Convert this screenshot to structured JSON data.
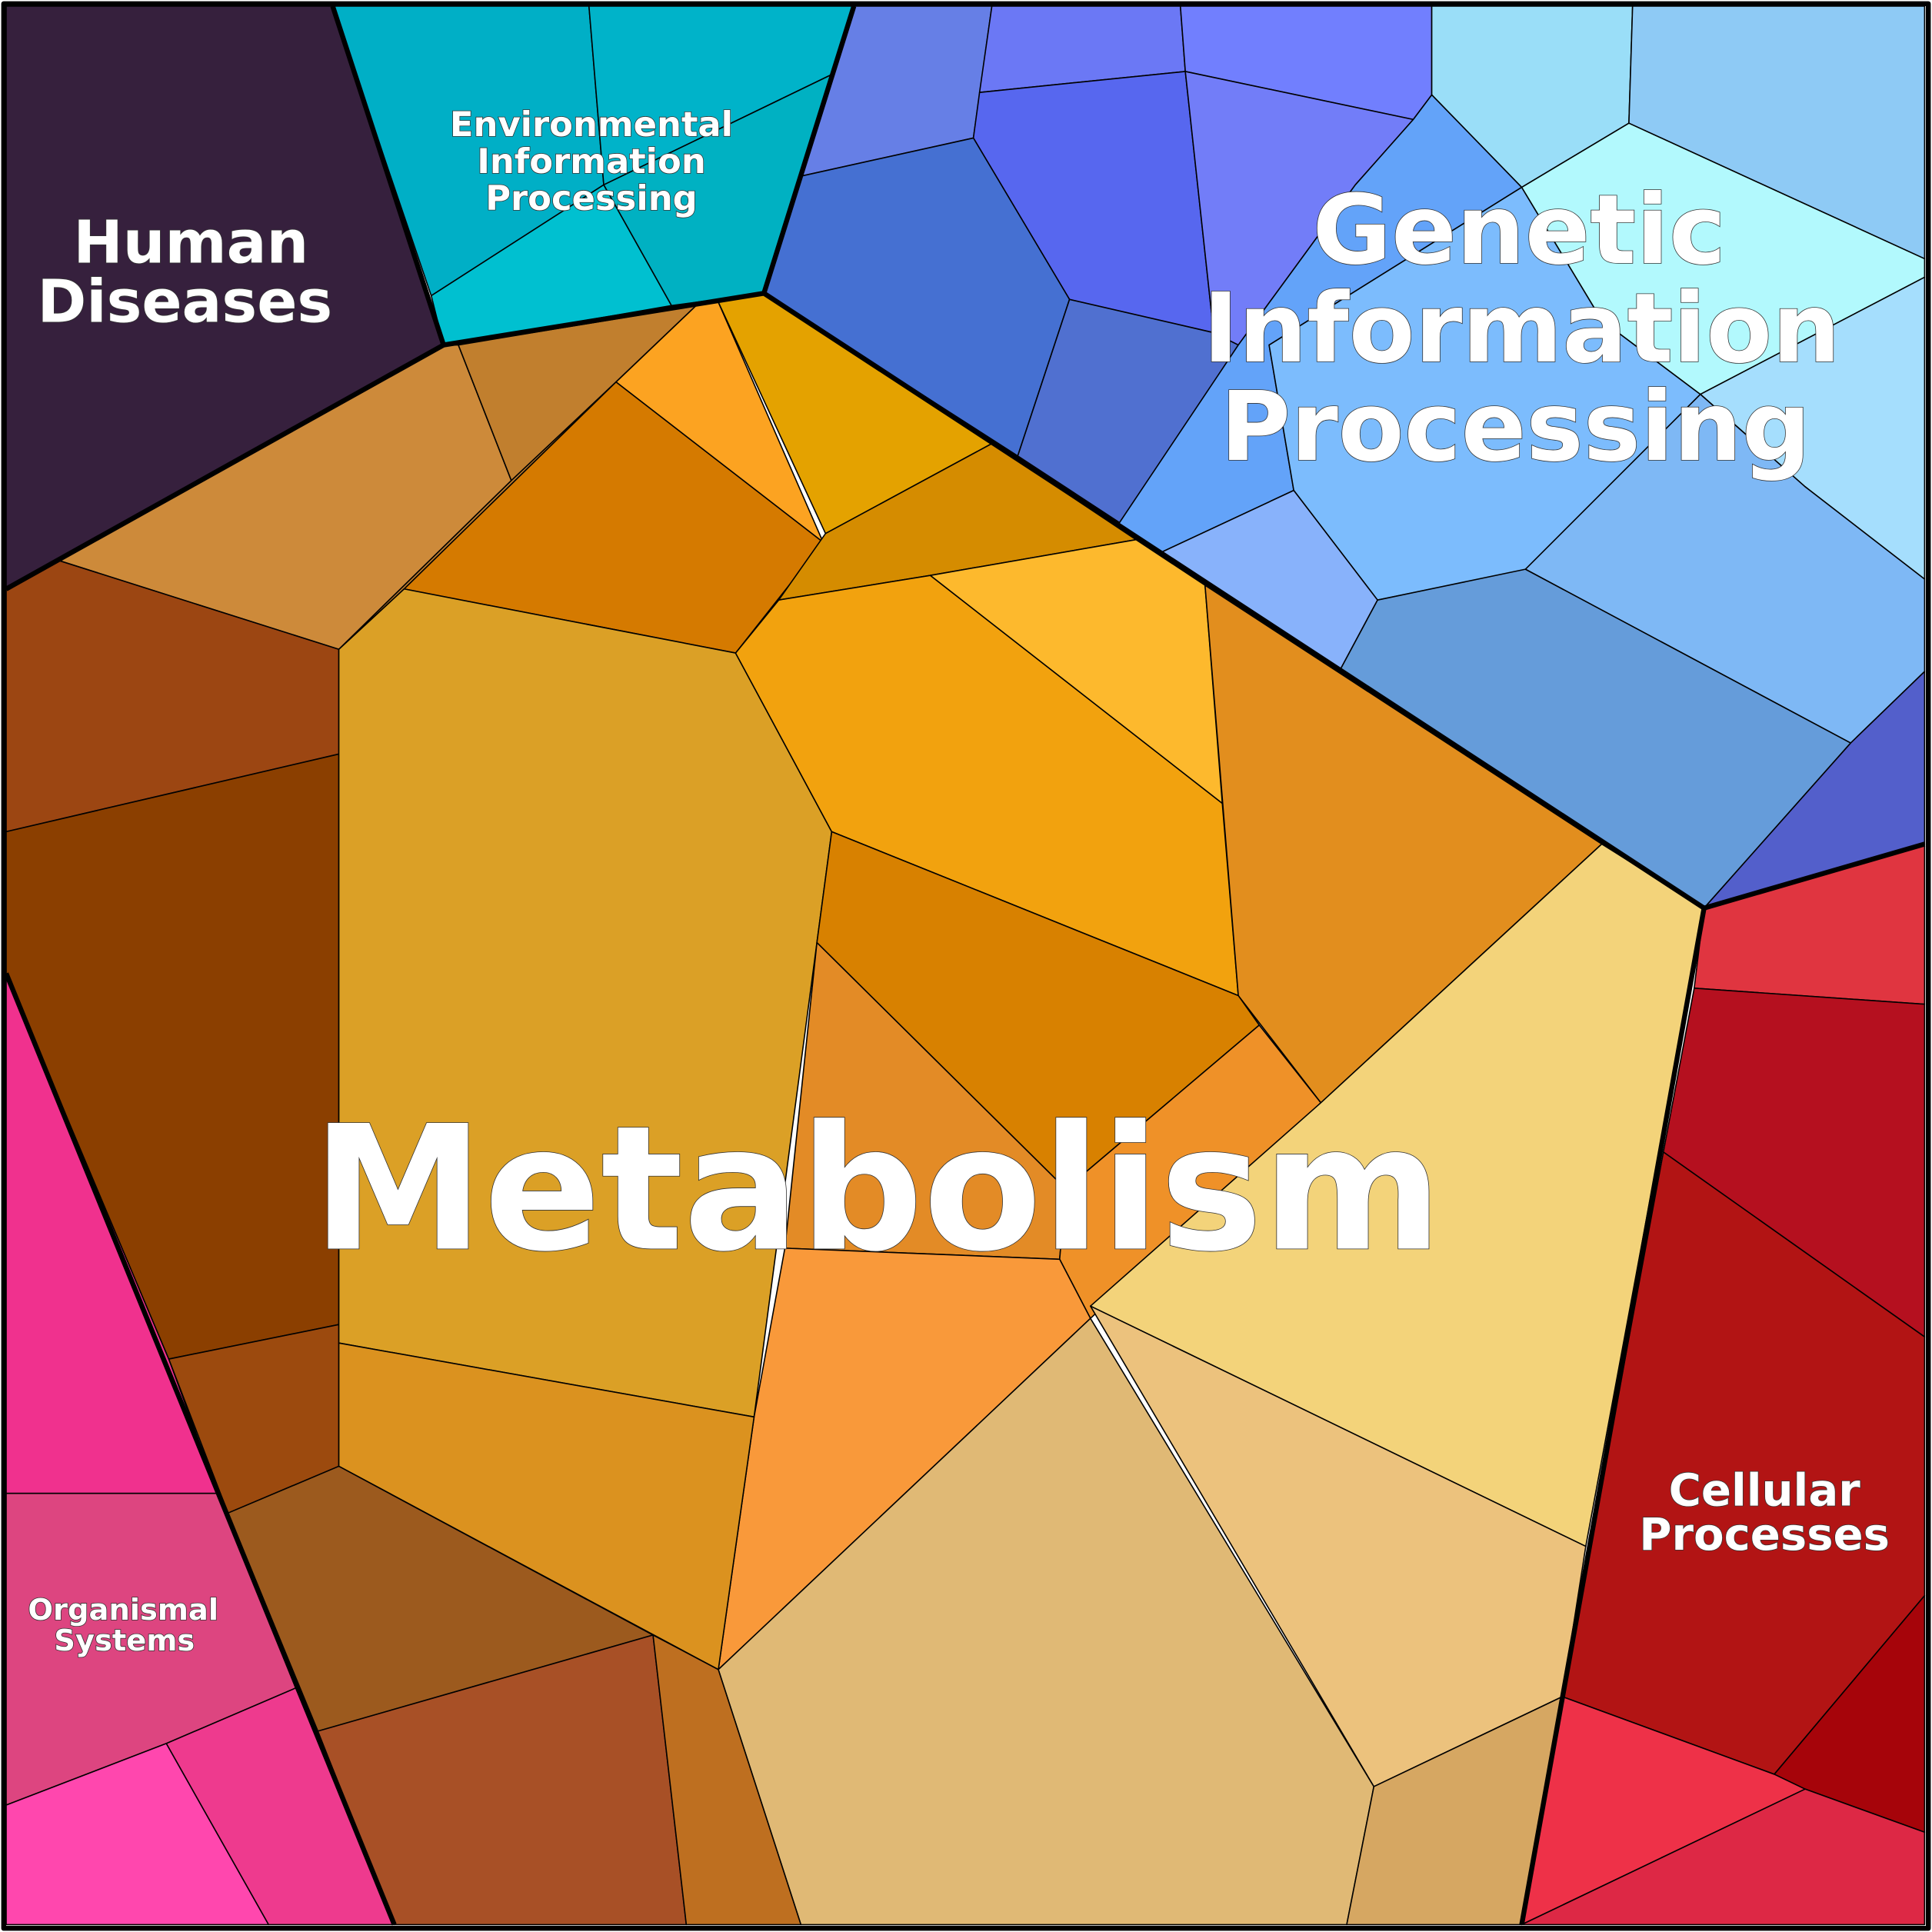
{
  "regions": [
    {
      "label": [
        "Human",
        "Diseases"
      ]
    },
    {
      "label": [
        "Environmental",
        "Information",
        "Processing"
      ]
    },
    {
      "label": [
        "Genetic",
        "Information",
        "Processing"
      ]
    },
    {
      "label": [
        "Metabolism"
      ]
    },
    {
      "label": [
        "Cellular",
        "Processes"
      ]
    },
    {
      "label": [
        "Organismal",
        "Systems"
      ]
    }
  ]
}
